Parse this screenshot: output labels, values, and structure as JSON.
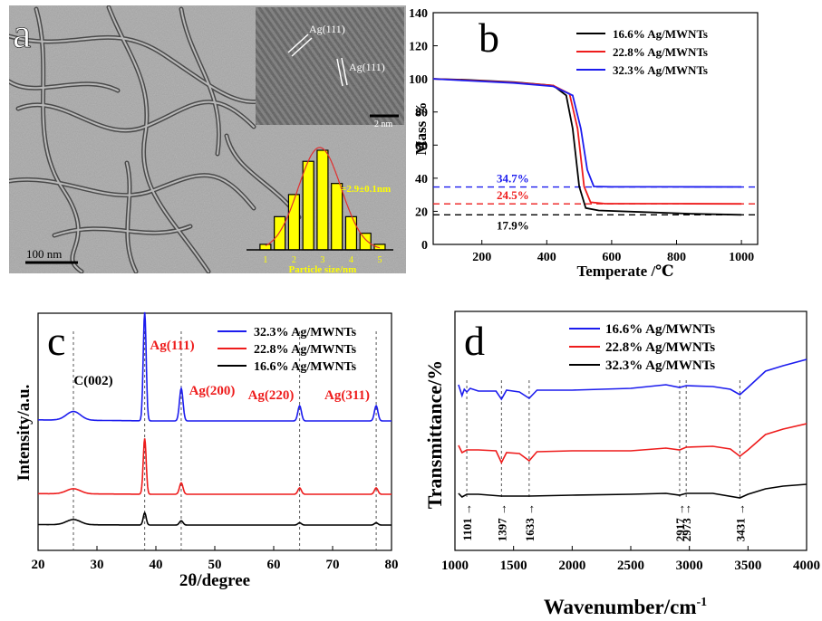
{
  "panels": {
    "a": {
      "letter": "a"
    },
    "b": {
      "letter": "b"
    },
    "c": {
      "letter": "c"
    },
    "d": {
      "letter": "d"
    }
  },
  "image_a": {
    "scale_bar_main": "100 nm",
    "scale_bar_inset": "2 nm",
    "lattice_labels": [
      "Ag(111)",
      "Ag(111)"
    ]
  },
  "chart_data": [
    {
      "type": "bar",
      "panel": "a-inset",
      "xlabel": "Particle size/nm",
      "x_ticks": [
        1,
        2,
        3,
        4,
        5
      ],
      "annotation": "d=2.9±0.1nm",
      "bars": [
        {
          "x": 1.0,
          "value": 1
        },
        {
          "x": 1.5,
          "value": 6
        },
        {
          "x": 2.0,
          "value": 10
        },
        {
          "x": 2.5,
          "value": 16
        },
        {
          "x": 3.0,
          "value": 18
        },
        {
          "x": 3.5,
          "value": 12
        },
        {
          "x": 4.0,
          "value": 6
        },
        {
          "x": 4.5,
          "value": 3
        },
        {
          "x": 5.0,
          "value": 1
        }
      ],
      "color": "#ffff00"
    },
    {
      "type": "line",
      "panel": "b",
      "xlabel": "Temperate /℃",
      "ylabel": "Mass %",
      "xlim": [
        50,
        1050
      ],
      "ylim": [
        0,
        140
      ],
      "x_ticks": [
        200,
        400,
        600,
        800,
        1000
      ],
      "y_ticks": [
        0,
        20,
        40,
        60,
        80,
        100,
        120,
        140
      ],
      "legend_position": "top-right",
      "series": [
        {
          "name": "16.6% Ag/MWNTs",
          "color": "#000000",
          "points": [
            [
              50,
              100
            ],
            [
              150,
              99.5
            ],
            [
              300,
              98
            ],
            [
              420,
              96
            ],
            [
              460,
              90
            ],
            [
              480,
              70
            ],
            [
              500,
              35
            ],
            [
              520,
              22
            ],
            [
              560,
              20.5
            ],
            [
              700,
              19.5
            ],
            [
              850,
              18.5
            ],
            [
              1000,
              17.9
            ]
          ]
        },
        {
          "name": "22.8% Ag/MWNTs",
          "color": "#ee1c1c",
          "points": [
            [
              50,
              100
            ],
            [
              150,
              99.2
            ],
            [
              300,
              97.8
            ],
            [
              420,
              96
            ],
            [
              470,
              91
            ],
            [
              495,
              70
            ],
            [
              515,
              35
            ],
            [
              535,
              25.5
            ],
            [
              580,
              24.6
            ],
            [
              800,
              24.6
            ],
            [
              1000,
              24.5
            ]
          ]
        },
        {
          "name": "32.3% Ag/MWNTs",
          "color": "#1c1cee",
          "points": [
            [
              50,
              100
            ],
            [
              150,
              99
            ],
            [
              300,
              97.5
            ],
            [
              420,
              95.5
            ],
            [
              480,
              90
            ],
            [
              505,
              70
            ],
            [
              525,
              45
            ],
            [
              545,
              35
            ],
            [
              600,
              34.8
            ],
            [
              800,
              34.8
            ],
            [
              1000,
              34.7
            ]
          ]
        }
      ],
      "reference_lines": [
        {
          "y": 34.7,
          "label": "34.7%",
          "color": "#1c1cee"
        },
        {
          "y": 24.5,
          "label": "24.5%",
          "color": "#ee1c1c"
        },
        {
          "y": 17.9,
          "label": "17.9%",
          "color": "#000000"
        }
      ]
    },
    {
      "type": "line",
      "panel": "c",
      "xlabel": "2θ/degree",
      "ylabel": "Intensity/a.u.",
      "xlim": [
        20,
        80
      ],
      "x_ticks": [
        20,
        30,
        40,
        50,
        60,
        70,
        80
      ],
      "legend_position": "top-right",
      "peak_labels": [
        {
          "x": 26,
          "label": "C(002)",
          "color": "#000000"
        },
        {
          "x": 38.1,
          "label": "Ag(111)",
          "color": "#ee1c1c"
        },
        {
          "x": 44.3,
          "label": "Ag(200)",
          "color": "#ee1c1c"
        },
        {
          "x": 64.4,
          "label": "Ag(220)",
          "color": "#ee1c1c"
        },
        {
          "x": 77.4,
          "label": "Ag(311)",
          "color": "#ee1c1c"
        }
      ],
      "series": [
        {
          "name": "32.3% Ag/MWNTs",
          "color": "#1c1cee",
          "offset": 2.0,
          "peaks": [
            [
              26,
              0.08,
              1.2
            ],
            [
              38.1,
              1.0,
              0.25
            ],
            [
              44.3,
              0.3,
              0.3
            ],
            [
              64.4,
              0.14,
              0.3
            ],
            [
              77.4,
              0.14,
              0.3
            ]
          ]
        },
        {
          "name": "22.8% Ag/MWNTs",
          "color": "#ee1c1c",
          "offset": 1.0,
          "peaks": [
            [
              26,
              0.08,
              1.2
            ],
            [
              38.1,
              0.88,
              0.25
            ],
            [
              44.3,
              0.18,
              0.3
            ],
            [
              64.4,
              0.1,
              0.3
            ],
            [
              77.4,
              0.1,
              0.3
            ]
          ]
        },
        {
          "name": "16.6% Ag/MWNTs",
          "color": "#000000",
          "offset": 0.0,
          "peaks": [
            [
              26,
              0.12,
              1.2
            ],
            [
              38.1,
              0.28,
              0.25
            ],
            [
              44.3,
              0.1,
              0.3
            ],
            [
              64.4,
              0.05,
              0.3
            ],
            [
              77.4,
              0.05,
              0.3
            ]
          ]
        }
      ]
    },
    {
      "type": "line",
      "panel": "d",
      "xlabel": "Wavenumber/cm",
      "xlabel_sup": "-1",
      "ylabel": "Transmittance/%",
      "xlim": [
        1000,
        4000
      ],
      "x_ticks": [
        1000,
        1500,
        2000,
        2500,
        3000,
        3500,
        4000
      ],
      "legend_position": "top",
      "band_labels": [
        {
          "x": 1101,
          "label": "1101"
        },
        {
          "x": 1397,
          "label": "1397"
        },
        {
          "x": 1633,
          "label": "1633"
        },
        {
          "x": 2917,
          "label": "2917"
        },
        {
          "x": 2973,
          "label": "2973"
        },
        {
          "x": 3431,
          "label": "3431"
        }
      ],
      "series": [
        {
          "name": "16.6% Ag/MWNTs",
          "color": "#1c1cee",
          "points": [
            [
              1030,
              425
            ],
            [
              1060,
              437
            ],
            [
              1080,
              430
            ],
            [
              1101,
              433
            ],
            [
              1130,
              429
            ],
            [
              1200,
              432
            ],
            [
              1350,
              432
            ],
            [
              1397,
              441
            ],
            [
              1440,
              431
            ],
            [
              1550,
              433
            ],
            [
              1633,
              440
            ],
            [
              1700,
              431
            ],
            [
              2000,
              431
            ],
            [
              2500,
              429
            ],
            [
              2800,
              425
            ],
            [
              2917,
              428
            ],
            [
              2973,
              426
            ],
            [
              3200,
              427
            ],
            [
              3350,
              430
            ],
            [
              3431,
              436
            ],
            [
              3500,
              428
            ],
            [
              3650,
              410
            ],
            [
              3800,
              404
            ],
            [
              4000,
              397
            ]
          ]
        },
        {
          "name": "22.8% Ag/MWNTs",
          "color": "#ee1c1c",
          "points": [
            [
              1030,
              492
            ],
            [
              1060,
              500
            ],
            [
              1101,
              497
            ],
            [
              1200,
              497
            ],
            [
              1350,
              498
            ],
            [
              1397,
              511
            ],
            [
              1440,
              500
            ],
            [
              1550,
              501
            ],
            [
              1633,
              509
            ],
            [
              1700,
              499
            ],
            [
              2000,
              498
            ],
            [
              2500,
              498
            ],
            [
              2800,
              495
            ],
            [
              2917,
              497
            ],
            [
              2973,
              494
            ],
            [
              3200,
              493
            ],
            [
              3350,
              496
            ],
            [
              3431,
              504
            ],
            [
              3500,
              497
            ],
            [
              3650,
              480
            ],
            [
              3800,
              474
            ],
            [
              4000,
              468
            ]
          ]
        },
        {
          "name": "32.3% Ag/MWNTs",
          "color": "#000000",
          "points": [
            [
              1030,
              545
            ],
            [
              1060,
              549
            ],
            [
              1101,
              546
            ],
            [
              1200,
              546
            ],
            [
              1397,
              548
            ],
            [
              1633,
              548
            ],
            [
              2000,
              547
            ],
            [
              2500,
              546
            ],
            [
              2800,
              545
            ],
            [
              2917,
              547
            ],
            [
              2973,
              545
            ],
            [
              3200,
              545
            ],
            [
              3431,
              550
            ],
            [
              3500,
              546
            ],
            [
              3650,
              540
            ],
            [
              3800,
              537
            ],
            [
              4000,
              535
            ]
          ]
        }
      ]
    }
  ]
}
